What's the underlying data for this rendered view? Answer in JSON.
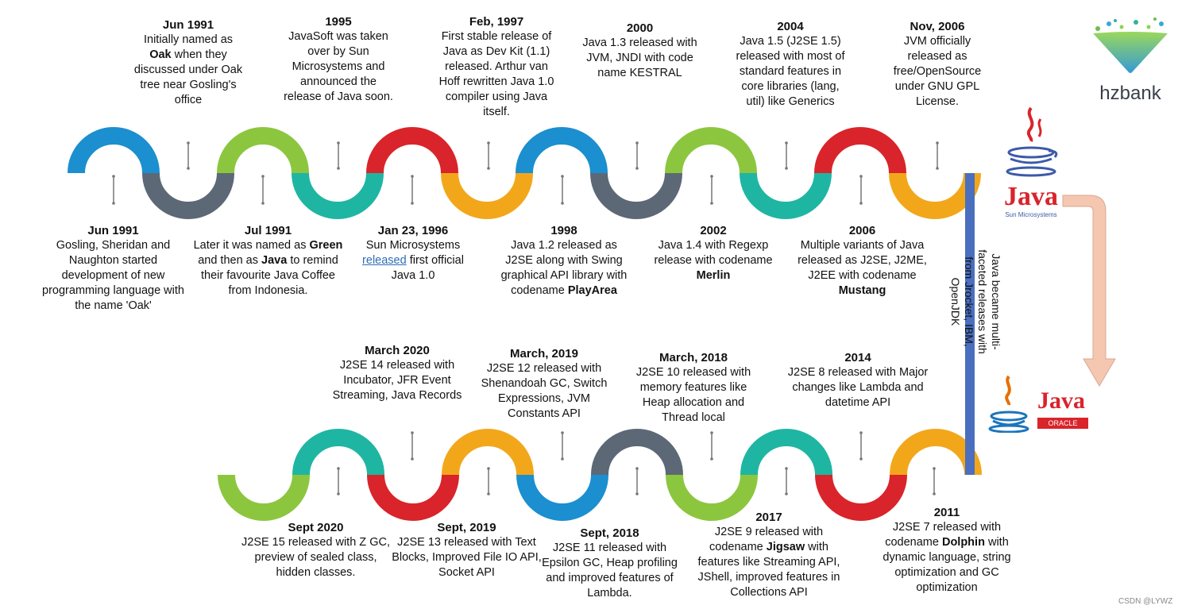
{
  "brand": {
    "text": "hzbank"
  },
  "side_note": "Java became multi-faceted releases with from Jrocket, IBM, OpenJDK",
  "logos": {
    "sun_java_text": "Java",
    "sun_text": "Sun Microsystems",
    "oracle_java_text": "Java",
    "oracle_text": "ORACLE"
  },
  "watermark": "CSDN @LYWZ",
  "colors": {
    "blue": "#1b8fcf",
    "green": "#8cc63f",
    "red": "#d9242b",
    "orange": "#f2a71b",
    "gray": "#5d6876",
    "teal": "#1fb5a3",
    "bar": "#4a6fbf",
    "arrow": "#f5c6b0"
  },
  "top_above": [
    {
      "date": "Jun 1991",
      "parts": [
        "Initially named as ",
        "Oak",
        " when they discussed under Oak tree near Gosling's office"
      ]
    },
    {
      "date": "1995",
      "parts": [
        "JavaSoft was taken over by Sun Microsystems and announced the release of Java soon."
      ]
    },
    {
      "date": "Feb, 1997",
      "parts": [
        "First stable release of Java as Dev Kit (1.1) released. Arthur van Hoff rewritten Java 1.0 compiler using Java itself."
      ]
    },
    {
      "date": "2000",
      "parts": [
        "Java 1.3 released with JVM, JNDI with code name KESTRAL"
      ]
    },
    {
      "date": "2004",
      "parts": [
        "Java 1.5 (J2SE 1.5) released with most of standard features in core libraries (lang, util) like Generics"
      ]
    },
    {
      "date": "Nov, 2006",
      "parts": [
        "JVM officially released as free/OpenSource under GNU GPL License."
      ]
    }
  ],
  "top_below": [
    {
      "date": "Jun 1991",
      "parts": [
        "Gosling, Sheridan and Naughton started development of new programming language with the name 'Oak'"
      ]
    },
    {
      "date": "Jul 1991",
      "parts": [
        "Later it was named as ",
        "Green",
        " and then as ",
        "Java",
        " to remind their favourite Java Coffee from Indonesia."
      ]
    },
    {
      "date": "Jan 23, 1996",
      "parts": [
        "Sun Microsystems ",
        "released",
        " first official Java 1.0"
      ]
    },
    {
      "date": "1998",
      "parts": [
        "Java 1.2 released as J2SE along with Swing graphical API library with codename ",
        "PlayArea"
      ]
    },
    {
      "date": "2002",
      "parts": [
        "Java 1.4 with Regexp release with codename ",
        "Merlin"
      ]
    },
    {
      "date": "2006",
      "parts": [
        "Multiple variants of Java released as J2SE, J2ME, J2EE with codename ",
        "Mustang"
      ]
    }
  ],
  "bottom_above": [
    {
      "date": "March 2020",
      "parts": [
        "J2SE 14 released with Incubator, JFR Event Streaming, Java Records"
      ]
    },
    {
      "date": "March, 2019",
      "parts": [
        "J2SE 12 released with Shenandoah GC, Switch Expressions, JVM Constants API"
      ]
    },
    {
      "date": "March, 2018",
      "parts": [
        "J2SE 10 released with memory features like Heap allocation and Thread local"
      ]
    },
    {
      "date": "2014",
      "parts": [
        "J2SE 8 released with Major changes like Lambda and datetime API"
      ]
    }
  ],
  "bottom_below": [
    {
      "date": "Sept 2020",
      "parts": [
        "J2SE 15 released with Z GC, preview of sealed class, hidden classes."
      ]
    },
    {
      "date": "Sept, 2019",
      "parts": [
        "J2SE 13 released with Text Blocks, Improved File IO API, Socket API"
      ]
    },
    {
      "date": "Sept, 2018",
      "parts": [
        "J2SE 11 released with Epsilon GC, Heap profiling and improved features of Lambda."
      ]
    },
    {
      "date": "2017",
      "parts": [
        "J2SE 9 released with codename ",
        "Jigsaw",
        " with features like Streaming API, JShell, improved features in Collections API"
      ]
    },
    {
      "date": "2011",
      "parts": [
        "J2SE 7 released with codename ",
        "Dolphin",
        " with dynamic language, string optimization and GC optimization"
      ]
    }
  ]
}
